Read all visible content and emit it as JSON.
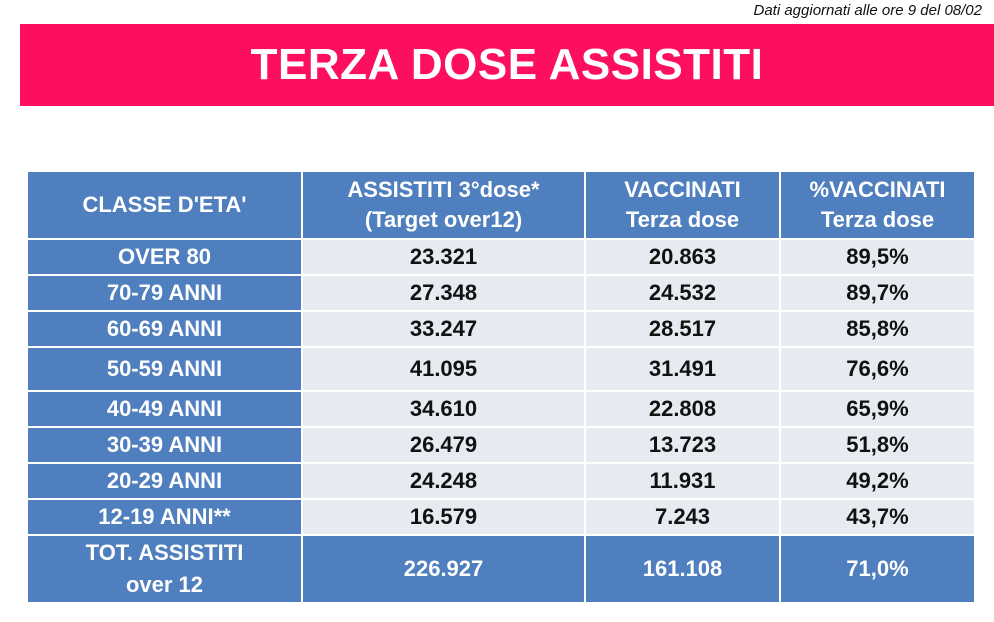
{
  "update_note": "Dati aggiornati alle ore 9 del 08/02",
  "title": "TERZA DOSE ASSISTITI",
  "colors": {
    "banner": "#fc0f61",
    "header_fill": "#4f7fbe",
    "cell_fill": "#e6eaf1"
  },
  "table": {
    "headers": [
      {
        "line1": "CLASSE D'ETA'",
        "line2": ""
      },
      {
        "line1": "ASSISTITI 3°dose*",
        "line2": "(Target over12)"
      },
      {
        "line1": "VACCINATI",
        "line2": "Terza dose"
      },
      {
        "line1": "%VACCINATI",
        "line2": "Terza dose"
      }
    ],
    "rows": [
      {
        "age": "OVER 80",
        "assistiti": "23.321",
        "vaccinati": "20.863",
        "percent": "89,5%"
      },
      {
        "age": "70-79 ANNI",
        "assistiti": "27.348",
        "vaccinati": "24.532",
        "percent": "89,7%"
      },
      {
        "age": "60-69 ANNI",
        "assistiti": "33.247",
        "vaccinati": "28.517",
        "percent": "85,8%"
      },
      {
        "age": "50-59 ANNI",
        "assistiti": "41.095",
        "vaccinati": "31.491",
        "percent": "76,6%"
      },
      {
        "age": "40-49 ANNI",
        "assistiti": "34.610",
        "vaccinati": "22.808",
        "percent": "65,9%"
      },
      {
        "age": "30-39 ANNI",
        "assistiti": "26.479",
        "vaccinati": "13.723",
        "percent": "51,8%"
      },
      {
        "age": "20-29 ANNI",
        "assistiti": "24.248",
        "vaccinati": "11.931",
        "percent": "49,2%"
      },
      {
        "age": "12-19 ANNI**",
        "assistiti": "16.579",
        "vaccinati": "7.243",
        "percent": "43,7%"
      }
    ],
    "total": {
      "label_line1": "TOT. ASSISTITI",
      "label_line2": "over 12",
      "assistiti": "226.927",
      "vaccinati": "161.108",
      "percent": "71,0%"
    }
  }
}
